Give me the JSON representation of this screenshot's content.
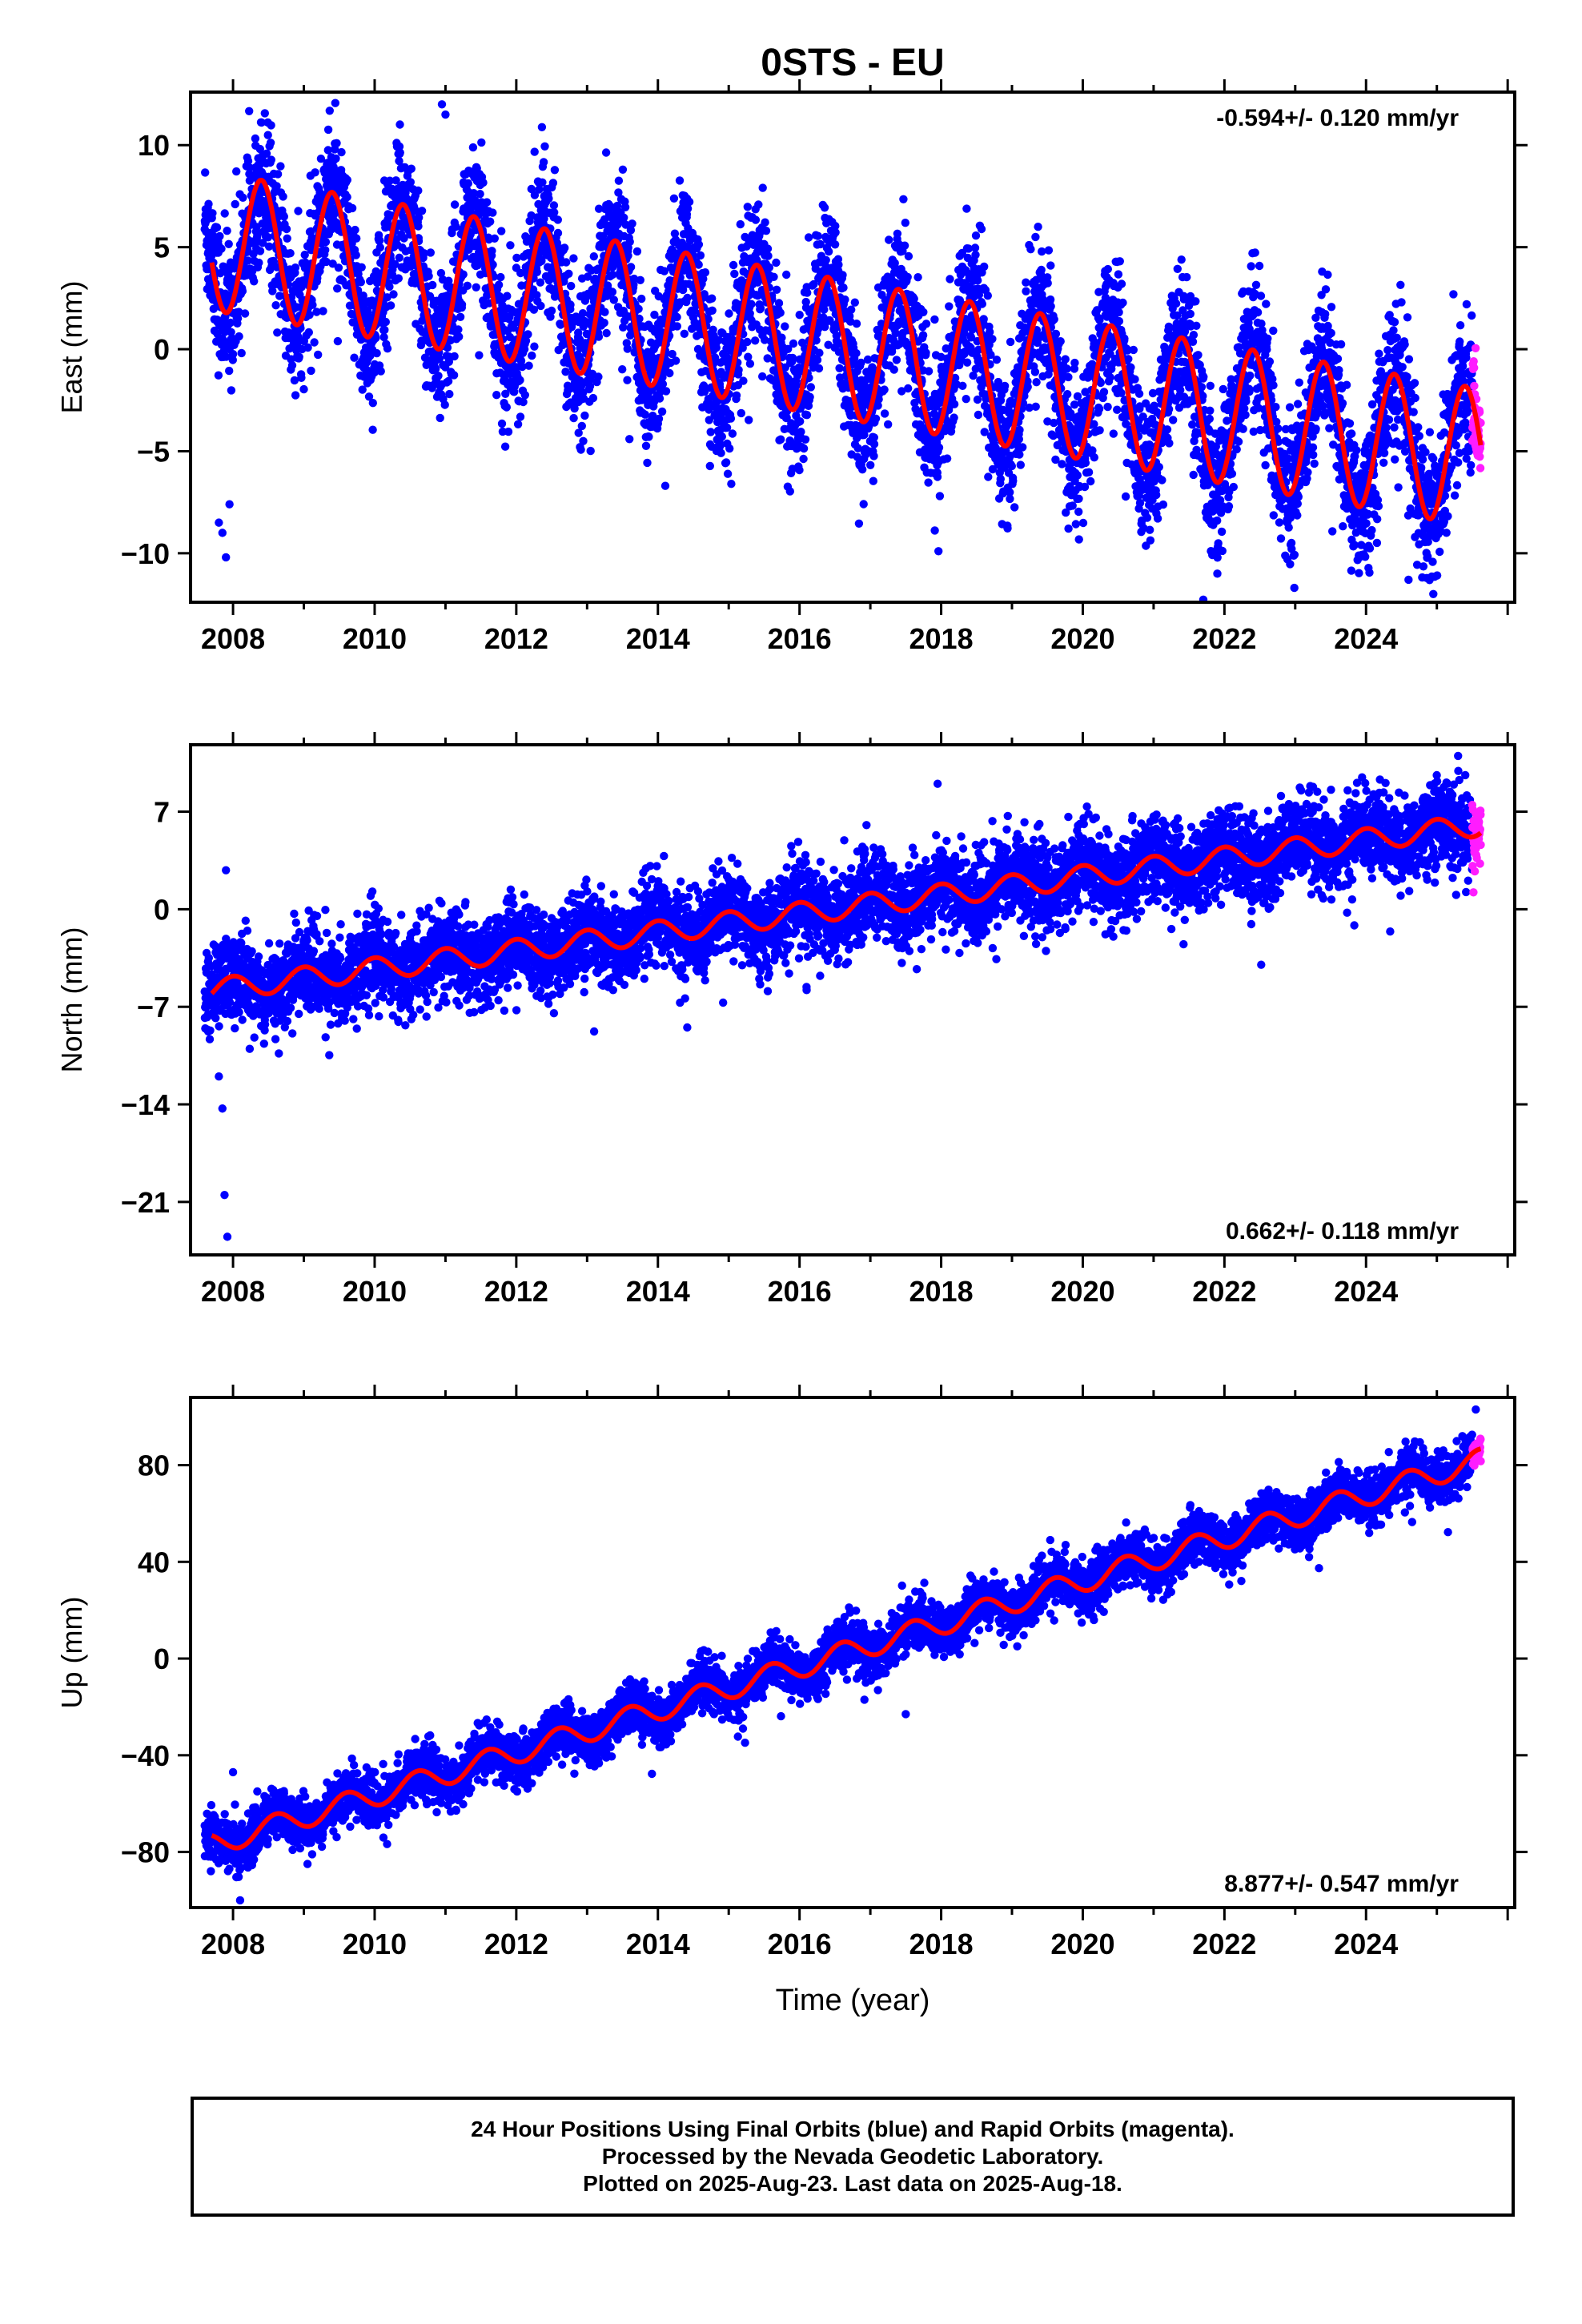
{
  "title": "0STS - EU",
  "colors": {
    "final": "#0000ff",
    "rapid": "#ff1cff",
    "model": "#ff0000",
    "axis": "#000000"
  },
  "x_axis": {
    "ticks": [
      2008,
      2010,
      2012,
      2014,
      2016,
      2018,
      2020,
      2022,
      2024
    ],
    "label": "Time (year)",
    "range": [
      2007.4,
      2026.1
    ]
  },
  "chart_data": [
    {
      "type": "scatter",
      "name": "east",
      "ylabel": "East (mm)",
      "ylim": [
        -12.4,
        12.6
      ],
      "yticks": [
        10,
        5,
        0,
        -5,
        -10
      ],
      "rate": "-0.594+/- 0.120 mm/yr",
      "rate_position": "top-right",
      "model": {
        "start": 2007.7,
        "end": 2025.62,
        "y0": 5.3,
        "slope": -0.594,
        "amplitude": 3.4,
        "period_years": 1.0,
        "peak_phase_year": 2008.4
      },
      "series": [
        {
          "name": "final",
          "x_range": [
            2007.6,
            2025.5
          ],
          "noise": 1.7
        },
        {
          "name": "rapid",
          "x_range": [
            2025.5,
            2025.62
          ],
          "noise": 1.0
        }
      ],
      "outliers": [
        [
          2007.8,
          -8.5
        ],
        [
          2007.85,
          -9.0
        ],
        [
          2007.9,
          -10.2
        ],
        [
          2007.95,
          -7.6
        ],
        [
          2010.95,
          12.0
        ],
        [
          2011.0,
          11.5
        ],
        [
          2012.9,
          -4.8
        ],
        [
          2021.9,
          -11.0
        ],
        [
          2024.6,
          -11.3
        ],
        [
          2024.95,
          -12.0
        ]
      ]
    },
    {
      "type": "scatter",
      "name": "north",
      "ylabel": "North (mm)",
      "ylim": [
        -24.8,
        11.8
      ],
      "yticks": [
        7,
        0,
        -7,
        -14,
        -21
      ],
      "rate": "0.662+/- 0.118 mm/yr",
      "rate_position": "bottom-right",
      "model": {
        "start": 2007.7,
        "end": 2025.62,
        "y0": -5.8,
        "slope": 0.662,
        "amplitude": 0.8,
        "period_years": 1.0,
        "peak_phase_year": 2008.0
      },
      "series": [
        {
          "name": "final",
          "x_range": [
            2007.6,
            2025.5
          ],
          "noise": 1.5
        },
        {
          "name": "rapid",
          "x_range": [
            2025.5,
            2025.62
          ],
          "noise": 1.0
        }
      ],
      "outliers": [
        [
          2007.85,
          -14.3
        ],
        [
          2007.88,
          -20.5
        ],
        [
          2007.92,
          -23.5
        ],
        [
          2007.9,
          2.8
        ],
        [
          2007.8,
          -12.0
        ],
        [
          2017.95,
          9.0
        ],
        [
          2025.3,
          11.0
        ],
        [
          2016.1,
          -5.8
        ]
      ]
    },
    {
      "type": "scatter",
      "name": "up",
      "ylabel": "Up (mm)",
      "ylim": [
        -103,
        108
      ],
      "yticks": [
        80,
        40,
        0,
        -40,
        -80
      ],
      "rate": "8.877+/- 0.547 mm/yr",
      "rate_position": "bottom-right",
      "xlabel": "Time (year)",
      "model": {
        "start": 2007.7,
        "end": 2025.62,
        "y0": -77.0,
        "slope": 8.877,
        "amplitude": 4.7,
        "period_years": 1.0,
        "peak_phase_year": 2008.6
      },
      "series": [
        {
          "name": "final",
          "x_range": [
            2007.6,
            2025.5
          ],
          "noise": 5.0
        },
        {
          "name": "rapid",
          "x_range": [
            2025.5,
            2025.62
          ],
          "noise": 3.0
        }
      ],
      "outliers": [
        [
          2008.0,
          -47.0
        ],
        [
          2008.1,
          -100.0
        ],
        [
          2017.5,
          -23.0
        ],
        [
          2025.55,
          103.0
        ]
      ]
    }
  ],
  "caption": {
    "line1": "24 Hour Positions Using Final Orbits (blue) and Rapid Orbits (magenta).",
    "line2": "Processed by the Nevada Geodetic Laboratory.",
    "line3": "Plotted on 2025-Aug-23. Last data on 2025-Aug-18."
  }
}
